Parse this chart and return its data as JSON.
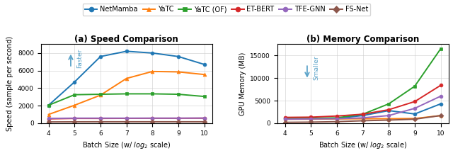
{
  "x": [
    4,
    5,
    6,
    7,
    8,
    9,
    10
  ],
  "speed": {
    "NetMamba": [
      2050,
      4700,
      7600,
      8200,
      8000,
      7600,
      6700
    ],
    "YaTC": [
      1000,
      2050,
      3200,
      5100,
      5900,
      5850,
      5550
    ],
    "YaTC_OF": [
      2050,
      3250,
      3300,
      3350,
      3350,
      3300,
      3050
    ],
    "ET_BERT": [
      500,
      550,
      550,
      560,
      570,
      570,
      580
    ],
    "TFE_GNN": [
      550,
      580,
      580,
      580,
      580,
      580,
      590
    ],
    "FS_Net": [
      150,
      160,
      165,
      165,
      165,
      165,
      165
    ]
  },
  "memory": {
    "NetMamba": [
      1050,
      1050,
      1100,
      1700,
      2800,
      2050,
      4300
    ],
    "YaTC": [
      900,
      900,
      950,
      1000,
      1000,
      1050,
      1700
    ],
    "YaTC_OF": [
      1100,
      1100,
      1200,
      2000,
      4300,
      8200,
      16500
    ],
    "ET_BERT": [
      1300,
      1350,
      1600,
      2000,
      3000,
      4800,
      8400
    ],
    "TFE_GNN": [
      900,
      950,
      1000,
      1200,
      1700,
      3300,
      6000
    ],
    "FS_Net": [
      200,
      250,
      350,
      550,
      700,
      900,
      1700
    ]
  },
  "colors": {
    "NetMamba": "#1f77b4",
    "YaTC": "#ff7f0e",
    "YaTC_OF": "#2ca02c",
    "ET_BERT": "#d62728",
    "TFE_GNN": "#9467bd",
    "FS_Net": "#8c564b"
  },
  "markers": {
    "NetMamba": "o",
    "YaTC": "^",
    "YaTC_OF": "s",
    "ET_BERT": "o",
    "TFE_GNN": "o",
    "FS_Net": "D"
  },
  "legend_labels": [
    "NetMamba",
    "YaTC",
    "YaTC (OF)",
    "ET-BERT",
    "TFE-GNN",
    "FS-Net"
  ],
  "legend_keys": [
    "NetMamba",
    "YaTC",
    "YaTC_OF",
    "ET_BERT",
    "TFE_GNN",
    "FS_Net"
  ],
  "title_a": "(a) Speed Comparison",
  "title_b": "(b) Memory Comparison",
  "ylabel_a": "Speed (sample per second)",
  "ylabel_b": "GPU Memory (MB)",
  "ylim_a": [
    0,
    9000
  ],
  "ylim_b": [
    0,
    17500
  ],
  "yticks_a": [
    0,
    2000,
    4000,
    6000,
    8000
  ],
  "yticks_b": [
    0,
    5000,
    10000,
    15000
  ],
  "annotation_color": "#5ba3c9"
}
